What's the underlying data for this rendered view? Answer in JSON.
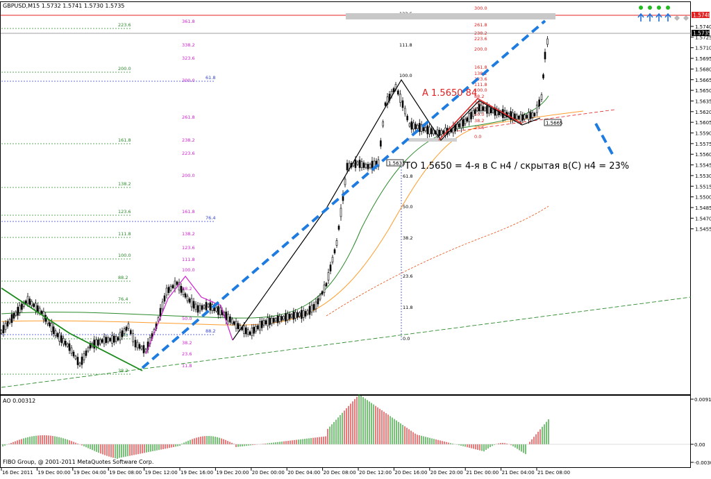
{
  "header": {
    "symbol_line": "GBPUSD,M15  1.5732 1.5741 1.5730 1.5735",
    "ao_label": "AO 0.00312",
    "copyright": "FIBO Group, @ 2001-2011 MetaQuotes Software Corp."
  },
  "annotations": {
    "a_label": "A 1.5650 84",
    "to_label": "ТО 1.5650 = 4-я в С н4 / скрытая в(С) н4 = 23%"
  },
  "price_tags": {
    "ask": "1.5748",
    "bid": "1.5735",
    "box1": "1.5665",
    "box2": "1.5633"
  },
  "price_axis": {
    "ticks": [
      "1.5740",
      "1.5725",
      "1.5710",
      "1.5695",
      "1.5680",
      "1.5665",
      "1.5650",
      "1.5635",
      "1.5620",
      "1.5605",
      "1.5590",
      "1.5575",
      "1.5560",
      "1.5545",
      "1.5530",
      "1.5515",
      "1.5500",
      "1.5485",
      "1.5470",
      "1.5455"
    ]
  },
  "ao_axis": {
    "ticks": [
      "0.00919",
      "0.00",
      "-0.00309"
    ]
  },
  "time_axis": {
    "ticks": [
      "16 Dec 2011",
      "19 Dec 00:00",
      "19 Dec 04:00",
      "19 Dec 08:00",
      "19 Dec 12:00",
      "19 Dec 16:00",
      "19 Dec 20:00",
      "20 Dec 00:00",
      "20 Dec 04:00",
      "20 Dec 08:00",
      "20 Dec 12:00",
      "20 Dec 16:00",
      "20 Dec 20:00",
      "21 Dec 00:00",
      "21 Dec 04:00",
      "21 Dec 08:00"
    ]
  },
  "fib_levels": {
    "green": [
      "223.6",
      "200.0",
      "161.8",
      "138.2",
      "123.6",
      "111.8",
      "100.0",
      "88.2",
      "76.4",
      "50.0",
      "38.2"
    ],
    "magenta_top": [
      "361.8",
      "338.2",
      "323.6",
      "300.0",
      "261.8",
      "238.2",
      "223.6",
      "200.0",
      "161.8",
      "138.2",
      "123.6",
      "111.8",
      "100.0",
      "88.2",
      "50.0",
      "38.2",
      "23.6",
      "11.8",
      "0.0"
    ],
    "blue": [
      "61.8",
      "76.4",
      "88.2"
    ],
    "black_mid": [
      "123.6",
      "111.8",
      "100.0"
    ],
    "blue_vertical": [
      "61.8",
      "50.0",
      "38.2",
      "23.6",
      "11.8",
      "0.0"
    ],
    "red_right": [
      "300.0",
      "261.8",
      "238.2",
      "223.6",
      "200.0",
      "161.8",
      "138.2",
      "123.6",
      "111.8",
      "100.0",
      "88.2",
      "76.4",
      "61.8",
      "50.0",
      "38.2",
      "23.6",
      "0.0"
    ],
    "other": [
      "76.4",
      "88.2",
      "23.6",
      "111.8",
      "138.2",
      "161.8",
      "200.0",
      "223.6",
      "261.8",
      "300.0",
      "0.0"
    ]
  },
  "colors": {
    "bullish_ao": "#1a9a1a",
    "bearish_ao": "#e02020",
    "trend_blue": "#1e7be0",
    "zigzag": "#000000",
    "fib_red": "#e02020",
    "fib_green": "#2a8a2a",
    "fib_magenta": "#d020d0",
    "ask_line": "#e02020",
    "bid_line": "#7f7f7f"
  },
  "signal_icons": [
    "up-arrow",
    "up-arrow",
    "up-arrow",
    "up-arrow",
    "diamond",
    "diamond"
  ]
}
